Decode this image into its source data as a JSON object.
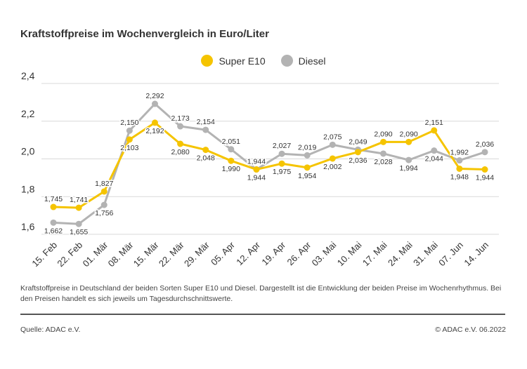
{
  "title": "Kraftstoffpreise im Wochenvergleich in Euro/Liter",
  "colors": {
    "super_e10": "#f5c400",
    "diesel": "#b3b3b3",
    "grid": "#d9d9d9",
    "text": "#333333"
  },
  "note": "Kraftstoffpreise in Deutschland der beiden Sorten Super E10 und Diesel. Dargestellt ist die Entwicklung der beiden Preise im Wochenrhythmus. Bei den Preisen handelt es sich jeweils um Tagesdurchschnittswerte.",
  "source": "Quelle: ADAC e.V.",
  "copyright": "© ADAC e.V. 06.2022",
  "chart_data": {
    "type": "line",
    "title": "Kraftstoffpreise im Wochenvergleich in Euro/Liter",
    "xlabel": "",
    "ylabel": "",
    "ylim": [
      1.6,
      2.4
    ],
    "yticks": [
      "1,6",
      "1,8",
      "2,0",
      "2,2",
      "2,4"
    ],
    "grid": true,
    "legend": "top-center",
    "categories": [
      "15. Feb",
      "22. Feb",
      "01. Mär",
      "08. Mär",
      "15. Mär",
      "22. Mär",
      "29. Mär",
      "05. Apr",
      "12. Apr",
      "19. Apr",
      "26. Apr",
      "03. Mai",
      "10. Mai",
      "17. Mai",
      "24. Mai",
      "31. Mai",
      "07. Jun",
      "14. Jun"
    ],
    "series": [
      {
        "name": "Super E10",
        "values": [
          1.745,
          1.741,
          1.827,
          2.103,
          2.192,
          2.08,
          2.048,
          1.99,
          1.944,
          1.975,
          1.954,
          2.002,
          2.036,
          2.09,
          2.09,
          2.151,
          1.948,
          1.944
        ],
        "labels": [
          "1,745",
          "1,741",
          "1,827",
          "2,103",
          "2,192",
          "2,080",
          "2,048",
          "1,990",
          "1,944",
          "1,975",
          "1,954",
          "2,002",
          "2,036",
          "2,090",
          "2,090",
          "2,151",
          "1,948",
          "1,944"
        ]
      },
      {
        "name": "Diesel",
        "values": [
          1.662,
          1.655,
          1.756,
          2.15,
          2.292,
          2.173,
          2.154,
          2.051,
          1.944,
          2.027,
          2.019,
          2.075,
          2.049,
          2.028,
          1.994,
          2.044,
          1.992,
          2.036
        ],
        "labels": [
          "1,662",
          "1,655",
          "1,756",
          "2,150",
          "2,292",
          "2,173",
          "2,154",
          "2,051",
          "1,944",
          "2,027",
          "2,019",
          "2,075",
          "2,049",
          "2,028",
          "1,994",
          "2,044",
          "1,992",
          "2,036"
        ]
      }
    ]
  }
}
